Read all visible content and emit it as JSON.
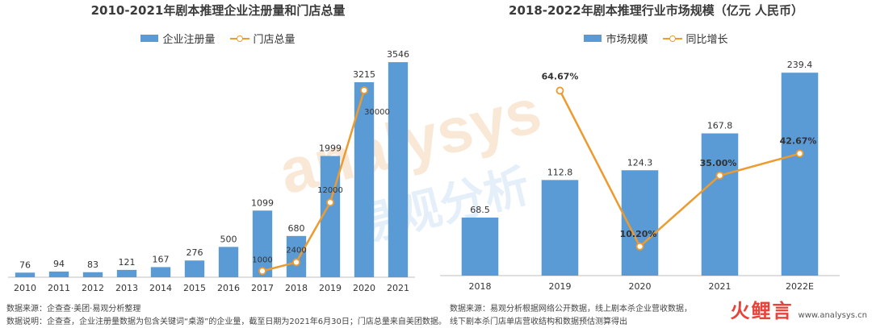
{
  "left": {
    "title": "2010-2021年剧本推理企业注册量和门店总量",
    "legend": {
      "bar": "企业注册量",
      "line": "门店总量"
    },
    "notes": [
      "数据来源：企查查·美团·易观分析整理",
      "数据说明：企查查，企业注册量数据为包含关键词“桌游”的企业量，截至日期为2021年6月30日；门店总量来自美团数据。"
    ]
  },
  "right": {
    "title": "2018-2022年剧本推理行业市场规模（亿元 人民币）",
    "legend": {
      "bar": "市场规模",
      "line": "同比增长"
    },
    "notes": [
      "数据来源：易观分析根据网络公开数据，线上剧本杀企业营收数据，",
      "线下剧本杀门店单店营收结构和数据预估测算得出"
    ]
  },
  "watermark": {
    "text_en": "analysys",
    "text_cn": "易观分析"
  },
  "footer": {
    "logo": "火鲤言",
    "url": "www.analysys.cn"
  },
  "colors": {
    "bar": "#5b9bd5",
    "line": "#ed9a2e",
    "axis": "#bfbfbf"
  },
  "chart_data": [
    {
      "type": "bar",
      "title": "2010-2021年剧本推理企业注册量和门店总量",
      "categories": [
        "2010",
        "2011",
        "2012",
        "2013",
        "2014",
        "2015",
        "2016",
        "2017",
        "2018",
        "2019",
        "2020",
        "2021"
      ],
      "series": [
        {
          "name": "企业注册量",
          "type": "bar",
          "values": [
            76,
            94,
            83,
            121,
            167,
            276,
            500,
            1099,
            680,
            1999,
            3215,
            3546
          ],
          "labels": [
            "76",
            "94",
            "83",
            "121",
            "167",
            "276",
            "500",
            "1099",
            "680",
            "1999",
            "3215",
            "3546"
          ]
        },
        {
          "name": "门店总量",
          "type": "line",
          "x": [
            "2017",
            "2018",
            "2019",
            "2020"
          ],
          "values": [
            1000,
            2400,
            12000,
            30000
          ],
          "labels": [
            "1000",
            "2400",
            "12000",
            "30000"
          ]
        }
      ],
      "ylim_bar": [
        0,
        3800
      ],
      "ylim_line": [
        0,
        37000
      ],
      "legend_position": "top"
    },
    {
      "type": "bar",
      "title": "2018-2022年剧本推理行业市场规模（亿元 人民币）",
      "categories": [
        "2018",
        "2019",
        "2020",
        "2021",
        "2022E"
      ],
      "series": [
        {
          "name": "市场规模",
          "type": "bar",
          "values": [
            68.5,
            112.8,
            124.3,
            167.8,
            239.4
          ],
          "labels": [
            "68.5",
            "112.8",
            "124.3",
            "167.8",
            "239.4"
          ]
        },
        {
          "name": "同比增长",
          "type": "line",
          "x": [
            "2019",
            "2020",
            "2021",
            "2022E"
          ],
          "values": [
            64.67,
            10.2,
            35.0,
            42.67
          ],
          "labels": [
            "64.67%",
            "10.20%",
            "35.00%",
            "42.67%"
          ]
        }
      ],
      "ylim_bar": [
        0,
        270
      ],
      "ylim_line": [
        0,
        80
      ],
      "legend_position": "top"
    }
  ]
}
